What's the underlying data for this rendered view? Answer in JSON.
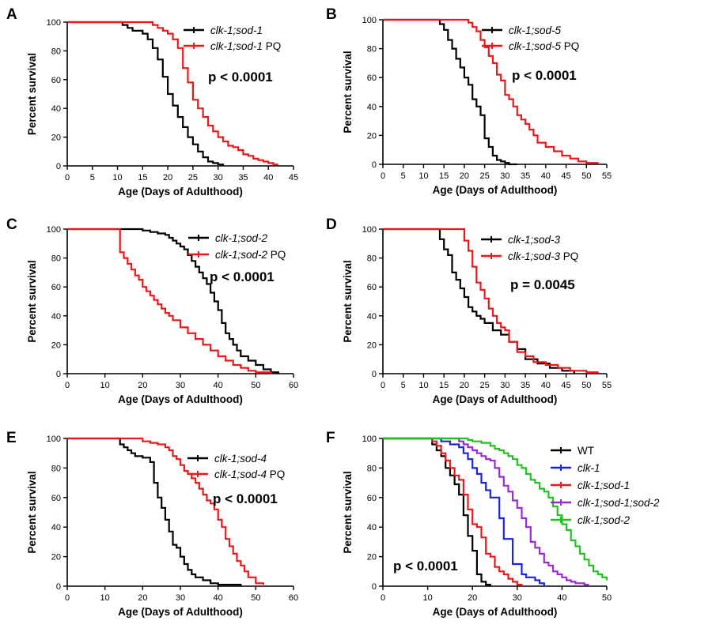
{
  "chart_data": [
    {
      "panel": "A",
      "type": "line",
      "xlabel": "Age (Days of Adulthood)",
      "ylabel": "Percent survival",
      "xlim": [
        0,
        45
      ],
      "ylim": [
        0,
        100
      ],
      "xticks": [
        0,
        5,
        10,
        15,
        20,
        25,
        30,
        35,
        40,
        45
      ],
      "yticks": [
        0,
        20,
        40,
        60,
        80,
        100
      ],
      "annotation": "p < 0.0001",
      "series": [
        {
          "name_parts": [
            {
              "text": "clk-1;sod-1",
              "italic": true
            }
          ],
          "color": "#000000",
          "x": [
            0,
            10,
            11,
            12,
            13,
            15,
            16,
            17,
            18,
            19,
            20,
            21,
            22,
            23,
            24,
            25,
            26,
            27,
            28,
            29,
            30,
            31
          ],
          "y": [
            100,
            100,
            98,
            96,
            94,
            92,
            88,
            82,
            74,
            62,
            50,
            42,
            34,
            27,
            20,
            15,
            10,
            6,
            3,
            2,
            1,
            0
          ]
        },
        {
          "name_parts": [
            {
              "text": "clk-1;sod-1",
              "italic": true
            },
            {
              "text": " PQ",
              "italic": false
            }
          ],
          "color": "#e8191a",
          "x": [
            0,
            16,
            17,
            18,
            19,
            20,
            21,
            22,
            23,
            24,
            25,
            26,
            27,
            28,
            29,
            30,
            31,
            32,
            33,
            34,
            35,
            36,
            37,
            38,
            39,
            40,
            41,
            42
          ],
          "y": [
            100,
            100,
            98,
            96,
            94,
            92,
            88,
            82,
            68,
            58,
            46,
            40,
            34,
            28,
            24,
            20,
            17,
            14,
            13,
            11,
            8,
            7,
            5,
            4,
            3,
            2,
            1,
            1
          ]
        }
      ]
    },
    {
      "panel": "B",
      "type": "line",
      "xlabel": "Age (Days of Adulthood)",
      "ylabel": "Percent survival",
      "xlim": [
        0,
        55
      ],
      "ylim": [
        0,
        100
      ],
      "xticks": [
        0,
        5,
        10,
        15,
        20,
        25,
        30,
        35,
        40,
        45,
        50,
        55
      ],
      "yticks": [
        0,
        20,
        40,
        60,
        80,
        100
      ],
      "annotation": "p < 0.0001",
      "series": [
        {
          "name_parts": [
            {
              "text": "clk-1;sod-5",
              "italic": true
            }
          ],
          "color": "#000000",
          "x": [
            0,
            13,
            14,
            15,
            16,
            17,
            18,
            19,
            20,
            21,
            22,
            23,
            24,
            25,
            26,
            27,
            28,
            29,
            30,
            31,
            33
          ],
          "y": [
            100,
            100,
            97,
            93,
            86,
            80,
            73,
            67,
            60,
            55,
            45,
            40,
            34,
            18,
            12,
            6,
            3,
            2,
            1,
            0,
            0
          ]
        },
        {
          "name_parts": [
            {
              "text": "clk-1;sod-5",
              "italic": true
            },
            {
              "text": " PQ",
              "italic": false
            }
          ],
          "color": "#e8191a",
          "x": [
            0,
            20,
            21,
            22,
            23,
            24,
            25,
            26,
            27,
            28,
            29,
            30,
            31,
            32,
            33,
            34,
            35,
            36,
            37,
            38,
            40,
            42,
            44,
            46,
            48,
            50,
            53
          ],
          "y": [
            100,
            100,
            98,
            95,
            92,
            86,
            81,
            75,
            70,
            62,
            58,
            48,
            45,
            40,
            34,
            31,
            28,
            24,
            20,
            15,
            12,
            9,
            6,
            4,
            2,
            1,
            1
          ]
        }
      ]
    },
    {
      "panel": "C",
      "type": "line",
      "xlabel": "Age (Days of Adulthood)",
      "ylabel": "Percent survival",
      "xlim": [
        0,
        60
      ],
      "ylim": [
        0,
        100
      ],
      "xticks": [
        0,
        10,
        20,
        30,
        40,
        50,
        60
      ],
      "yticks": [
        0,
        20,
        40,
        60,
        80,
        100
      ],
      "annotation": "p < 0.0001",
      "series": [
        {
          "name_parts": [
            {
              "text": "clk-1;sod-2",
              "italic": true
            }
          ],
          "color": "#000000",
          "x": [
            0,
            18,
            20,
            22,
            24,
            26,
            27,
            28,
            29,
            30,
            31,
            32,
            33,
            34,
            35,
            36,
            37,
            38,
            39,
            40,
            41,
            42,
            43,
            44,
            45,
            46,
            48,
            50,
            52,
            54,
            56
          ],
          "y": [
            100,
            100,
            99,
            98,
            97,
            96,
            94,
            92,
            90,
            88,
            86,
            82,
            78,
            74,
            70,
            66,
            62,
            56,
            50,
            44,
            35,
            28,
            24,
            20,
            16,
            12,
            9,
            6,
            3,
            1,
            0
          ]
        },
        {
          "name_parts": [
            {
              "text": "clk-1;sod-2",
              "italic": true
            },
            {
              "text": " PQ",
              "italic": false
            }
          ],
          "color": "#e8191a",
          "x": [
            0,
            13,
            14,
            15,
            16,
            17,
            18,
            19,
            20,
            21,
            22,
            23,
            24,
            25,
            26,
            27,
            28,
            30,
            32,
            34,
            36,
            38,
            40,
            42,
            44,
            46,
            48,
            50,
            54
          ],
          "y": [
            100,
            100,
            84,
            80,
            76,
            72,
            68,
            65,
            60,
            57,
            54,
            51,
            48,
            45,
            42,
            40,
            37,
            32,
            28,
            24,
            20,
            16,
            12,
            9,
            6,
            4,
            2,
            1,
            0
          ]
        }
      ]
    },
    {
      "panel": "D",
      "type": "line",
      "xlabel": "Age (Days of Adulthood)",
      "ylabel": "Percent survival",
      "xlim": [
        0,
        55
      ],
      "ylim": [
        0,
        100
      ],
      "xticks": [
        0,
        5,
        10,
        15,
        20,
        25,
        30,
        35,
        40,
        45,
        50,
        55
      ],
      "yticks": [
        0,
        20,
        40,
        60,
        80,
        100
      ],
      "annotation": "p = 0.0045",
      "series": [
        {
          "name_parts": [
            {
              "text": "clk-1;sod-3",
              "italic": true
            }
          ],
          "color": "#000000",
          "x": [
            0,
            13,
            14,
            15,
            16,
            17,
            18,
            19,
            20,
            21,
            22,
            23,
            24,
            25,
            27,
            29,
            31,
            33,
            35,
            38,
            41,
            44,
            47
          ],
          "y": [
            100,
            100,
            93,
            86,
            82,
            70,
            65,
            59,
            53,
            46,
            43,
            40,
            38,
            35,
            30,
            27,
            22,
            17,
            10,
            7,
            4,
            2,
            0
          ]
        },
        {
          "name_parts": [
            {
              "text": "clk-1;sod-3",
              "italic": true
            },
            {
              "text": " PQ",
              "italic": false
            }
          ],
          "color": "#e8191a",
          "x": [
            0,
            18,
            20,
            21,
            22,
            23,
            24,
            25,
            26,
            27,
            28,
            29,
            30,
            31,
            33,
            35,
            37,
            40,
            43,
            46,
            50,
            53
          ],
          "y": [
            100,
            100,
            92,
            85,
            74,
            63,
            58,
            52,
            45,
            40,
            35,
            32,
            30,
            22,
            15,
            12,
            8,
            6,
            4,
            2,
            1,
            1
          ]
        }
      ]
    },
    {
      "panel": "E",
      "type": "line",
      "xlabel": "Age (Days of Adulthood)",
      "ylabel": "Percent survival",
      "xlim": [
        0,
        60
      ],
      "ylim": [
        0,
        100
      ],
      "xticks": [
        0,
        10,
        20,
        30,
        40,
        50,
        60
      ],
      "yticks": [
        0,
        20,
        40,
        60,
        80,
        100
      ],
      "annotation": "p < 0.0001",
      "series": [
        {
          "name_parts": [
            {
              "text": "clk-1;sod-4",
              "italic": true
            }
          ],
          "color": "#000000",
          "x": [
            0,
            13,
            14,
            15,
            16,
            17,
            18,
            20,
            22,
            23,
            24,
            25,
            26,
            27,
            28,
            29,
            30,
            31,
            32,
            33,
            34,
            36,
            38,
            40,
            43,
            46
          ],
          "y": [
            100,
            100,
            96,
            94,
            92,
            90,
            88,
            87,
            84,
            70,
            60,
            53,
            45,
            37,
            28,
            26,
            20,
            15,
            11,
            8,
            6,
            4,
            2,
            1,
            1,
            0
          ]
        },
        {
          "name_parts": [
            {
              "text": "clk-1;sod-4",
              "italic": true
            },
            {
              "text": " PQ",
              "italic": false
            }
          ],
          "color": "#e8191a",
          "x": [
            0,
            17,
            20,
            22,
            24,
            26,
            27,
            28,
            29,
            30,
            31,
            32,
            33,
            34,
            35,
            36,
            37,
            38,
            39,
            40,
            41,
            42,
            43,
            44,
            45,
            46,
            47,
            48,
            50,
            52
          ],
          "y": [
            100,
            100,
            98,
            97,
            96,
            94,
            92,
            88,
            86,
            82,
            78,
            76,
            73,
            70,
            66,
            62,
            58,
            56,
            52,
            45,
            40,
            32,
            27,
            22,
            17,
            14,
            10,
            6,
            2,
            1
          ]
        }
      ]
    },
    {
      "panel": "F",
      "type": "line",
      "xlabel": "Age (Days of Adulthood)",
      "ylabel": "Percent survival",
      "xlim": [
        0,
        50
      ],
      "ylim": [
        0,
        100
      ],
      "xticks": [
        0,
        10,
        20,
        30,
        40,
        50
      ],
      "yticks": [
        0,
        20,
        40,
        60,
        80,
        100
      ],
      "annotation": "p < 0.0001",
      "series": [
        {
          "name_parts": [
            {
              "text": "WT",
              "italic": false
            }
          ],
          "color": "#000000",
          "x": [
            0,
            10,
            11,
            12,
            13,
            14,
            15,
            16,
            17,
            18,
            19,
            20,
            21,
            22,
            23,
            24
          ],
          "y": [
            100,
            100,
            96,
            92,
            88,
            80,
            75,
            69,
            62,
            48,
            34,
            24,
            8,
            3,
            1,
            0
          ]
        },
        {
          "name_parts": [
            {
              "text": "clk-1",
              "italic": true
            }
          ],
          "color": "#1a24d6",
          "x": [
            0,
            11,
            13,
            15,
            17,
            18,
            19,
            20,
            21,
            22,
            23,
            24,
            25,
            26,
            27,
            28,
            29,
            30,
            31,
            32,
            33,
            34,
            35,
            36
          ],
          "y": [
            100,
            100,
            98,
            96,
            94,
            90,
            86,
            80,
            76,
            70,
            65,
            60,
            60,
            46,
            32,
            32,
            15,
            15,
            8,
            6,
            6,
            4,
            2,
            0
          ]
        },
        {
          "name_parts": [
            {
              "text": "clk-1;sod-1",
              "italic": true
            }
          ],
          "color": "#e8191a",
          "x": [
            0,
            10,
            11,
            12,
            13,
            14,
            15,
            16,
            17,
            18,
            19,
            20,
            21,
            22,
            23,
            24,
            25,
            26,
            27,
            28,
            29,
            30,
            31
          ],
          "y": [
            100,
            100,
            98,
            95,
            90,
            85,
            80,
            75,
            72,
            62,
            52,
            42,
            40,
            33,
            22,
            20,
            13,
            10,
            8,
            5,
            3,
            1,
            0
          ]
        },
        {
          "name_parts": [
            {
              "text": "clk-1;sod-1;sod-2",
              "italic": true
            }
          ],
          "color": "#9a2bd4",
          "x": [
            0,
            15,
            17,
            18,
            19,
            20,
            21,
            22,
            23,
            24,
            25,
            26,
            27,
            28,
            29,
            30,
            31,
            32,
            33,
            34,
            35,
            36,
            37,
            38,
            39,
            40,
            41,
            42,
            43,
            44,
            45,
            46
          ],
          "y": [
            100,
            100,
            98,
            96,
            94,
            92,
            90,
            88,
            86,
            85,
            80,
            74,
            68,
            64,
            58,
            53,
            46,
            40,
            30,
            26,
            22,
            16,
            14,
            10,
            8,
            6,
            4,
            3,
            2,
            2,
            1,
            1
          ]
        },
        {
          "name_parts": [
            {
              "text": "clk-1;sod-2",
              "italic": true
            }
          ],
          "color": "#22c022",
          "x": [
            0,
            17,
            19,
            20,
            21,
            22,
            23,
            24,
            25,
            26,
            27,
            28,
            29,
            30,
            31,
            32,
            33,
            34,
            35,
            36,
            37,
            38,
            39,
            40,
            41,
            42,
            43,
            44,
            45,
            46,
            47,
            48,
            49,
            50
          ],
          "y": [
            100,
            100,
            99,
            98,
            98,
            97,
            97,
            95,
            93,
            92,
            90,
            88,
            86,
            82,
            80,
            76,
            72,
            70,
            66,
            64,
            60,
            54,
            48,
            42,
            38,
            31,
            27,
            22,
            18,
            14,
            10,
            8,
            6,
            4
          ]
        }
      ]
    }
  ]
}
